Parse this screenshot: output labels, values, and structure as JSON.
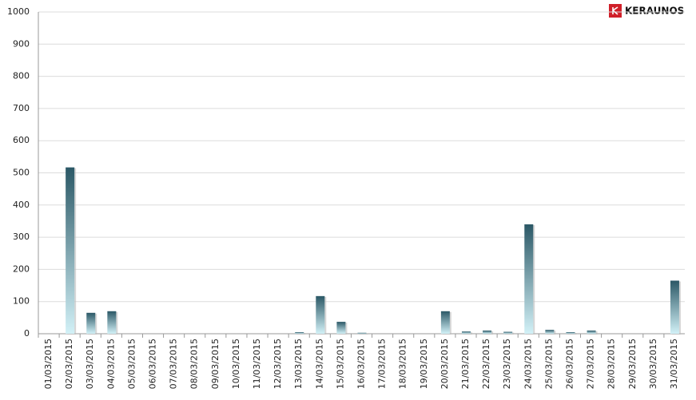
{
  "chart_data": {
    "type": "bar",
    "logo": "KERAUNOS",
    "categories": [
      "01/03/2015",
      "02/03/2015",
      "03/03/2015",
      "04/03/2015",
      "05/03/2015",
      "06/03/2015",
      "07/03/2015",
      "08/03/2015",
      "09/03/2015",
      "10/03/2015",
      "11/03/2015",
      "12/03/2015",
      "13/03/2015",
      "14/03/2015",
      "15/03/2015",
      "16/03/2015",
      "17/03/2015",
      "18/03/2015",
      "19/03/2015",
      "20/03/2015",
      "21/03/2015",
      "22/03/2015",
      "23/03/2015",
      "24/03/2015",
      "25/03/2015",
      "26/03/2015",
      "27/03/2015",
      "28/03/2015",
      "29/03/2015",
      "30/03/2015",
      "31/03/2015"
    ],
    "values": [
      0,
      517,
      65,
      70,
      0,
      0,
      0,
      0,
      0,
      0,
      0,
      0,
      5,
      117,
      37,
      3,
      0,
      0,
      0,
      70,
      7,
      10,
      6,
      340,
      12,
      5,
      10,
      0,
      0,
      0,
      165
    ],
    "gradient": [
      "#2b5866",
      "#d2f1f7"
    ],
    "ylim": [
      0,
      1000
    ],
    "yticks": [
      0,
      100,
      200,
      300,
      400,
      500,
      600,
      700,
      800,
      900,
      1000
    ],
    "grid": true
  }
}
